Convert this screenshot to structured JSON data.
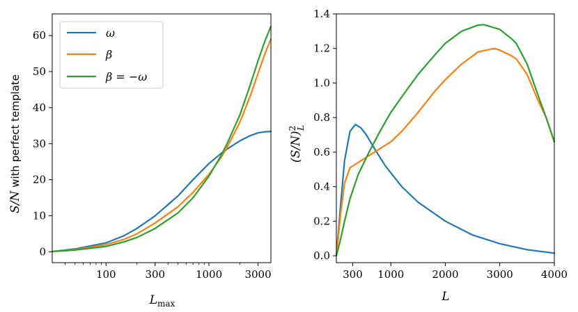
{
  "chart_data": [
    {
      "type": "line",
      "xscale": "log",
      "xlabel": "L_max",
      "xlabel_main": "L",
      "xlabel_sub": "max",
      "ylabel": "S/N with perfect template",
      "ylabel_math": "S/N",
      "ylabel_text": " with perfect template",
      "xlim": [
        30,
        4000
      ],
      "ylim": [
        -3,
        66
      ],
      "xticks": [
        100,
        300,
        1000,
        3000
      ],
      "xtick_labels": [
        "100",
        "300",
        "1000",
        "3000"
      ],
      "yticks": [
        0,
        10,
        20,
        30,
        40,
        50,
        60
      ],
      "ytick_labels": [
        "0",
        "10",
        "20",
        "30",
        "40",
        "50",
        "60"
      ],
      "legend": {
        "position": "top-left"
      },
      "series": [
        {
          "name": "ω",
          "color": "#1f77b4",
          "x": [
            30,
            50,
            100,
            150,
            200,
            300,
            500,
            700,
            1000,
            1300,
            1500,
            2000,
            2500,
            3000,
            3500,
            4000
          ],
          "y": [
            0.1,
            0.8,
            2.5,
            4.5,
            6.5,
            10.0,
            15.5,
            20.0,
            24.5,
            27.2,
            28.5,
            30.8,
            32.2,
            33.0,
            33.3,
            33.4
          ]
        },
        {
          "name": "β",
          "color": "#ff7f0e",
          "x": [
            30,
            50,
            100,
            150,
            200,
            300,
            500,
            700,
            1000,
            1300,
            1500,
            2000,
            2500,
            3000,
            3500,
            4000
          ],
          "y": [
            0.1,
            0.6,
            2.0,
            3.5,
            5.0,
            8.0,
            12.5,
            16.5,
            21.5,
            26.0,
            29.0,
            36.0,
            43.0,
            49.5,
            55.0,
            59.0
          ]
        },
        {
          "name": "β = −ω",
          "color": "#2ca02c",
          "x": [
            30,
            50,
            100,
            150,
            200,
            300,
            500,
            700,
            1000,
            1300,
            1500,
            2000,
            2500,
            3000,
            3500,
            4000
          ],
          "y": [
            0.1,
            0.5,
            1.5,
            2.8,
            4.0,
            6.5,
            10.8,
            15.0,
            21.0,
            26.5,
            30.0,
            38.0,
            46.0,
            53.0,
            58.5,
            62.5
          ]
        }
      ]
    },
    {
      "type": "line",
      "xscale": "linear",
      "xlabel": "L",
      "ylabel": "(S/N)^2_L",
      "xlim": [
        0,
        4000
      ],
      "ylim": [
        -0.04,
        1.4
      ],
      "xticks": [
        300,
        1000,
        2000,
        3000,
        4000
      ],
      "xtick_labels": [
        "300",
        "1000",
        "2000",
        "3000",
        "4000"
      ],
      "yticks": [
        0,
        0.2,
        0.4,
        0.6,
        0.8,
        1.0,
        1.2,
        1.4
      ],
      "ytick_labels": [
        "0.0",
        "0.2",
        "0.4",
        "0.6",
        "0.8",
        "1.0",
        "1.2",
        "1.4"
      ],
      "series": [
        {
          "name": "ω",
          "color": "#1f77b4",
          "x": [
            0,
            80,
            150,
            250,
            350,
            450,
            550,
            700,
            900,
            1200,
            1500,
            2000,
            2500,
            3000,
            3500,
            4000
          ],
          "y": [
            0.0,
            0.3,
            0.55,
            0.72,
            0.76,
            0.74,
            0.7,
            0.62,
            0.52,
            0.4,
            0.31,
            0.2,
            0.12,
            0.07,
            0.035,
            0.015
          ]
        },
        {
          "name": "β",
          "color": "#ff7f0e",
          "x": [
            0,
            80,
            150,
            250,
            400,
            600,
            800,
            1000,
            1200,
            1500,
            1800,
            2000,
            2300,
            2600,
            2900,
            3000,
            3200,
            3300,
            3500,
            3700,
            3850,
            4000
          ],
          "y": [
            0.0,
            0.25,
            0.42,
            0.51,
            0.54,
            0.58,
            0.62,
            0.66,
            0.72,
            0.83,
            0.95,
            1.02,
            1.11,
            1.18,
            1.2,
            1.19,
            1.16,
            1.14,
            1.05,
            0.9,
            0.8,
            0.66
          ]
        },
        {
          "name": "β = −ω",
          "color": "#2ca02c",
          "x": [
            0,
            80,
            150,
            250,
            400,
            600,
            800,
            1000,
            1200,
            1500,
            1800,
            2000,
            2300,
            2600,
            2700,
            2900,
            3000,
            3200,
            3300,
            3500,
            3700,
            3850,
            4000
          ],
          "y": [
            0.0,
            0.1,
            0.2,
            0.33,
            0.47,
            0.6,
            0.72,
            0.83,
            0.92,
            1.05,
            1.16,
            1.23,
            1.3,
            1.335,
            1.338,
            1.32,
            1.31,
            1.26,
            1.23,
            1.11,
            0.93,
            0.8,
            0.66
          ]
        }
      ]
    }
  ]
}
